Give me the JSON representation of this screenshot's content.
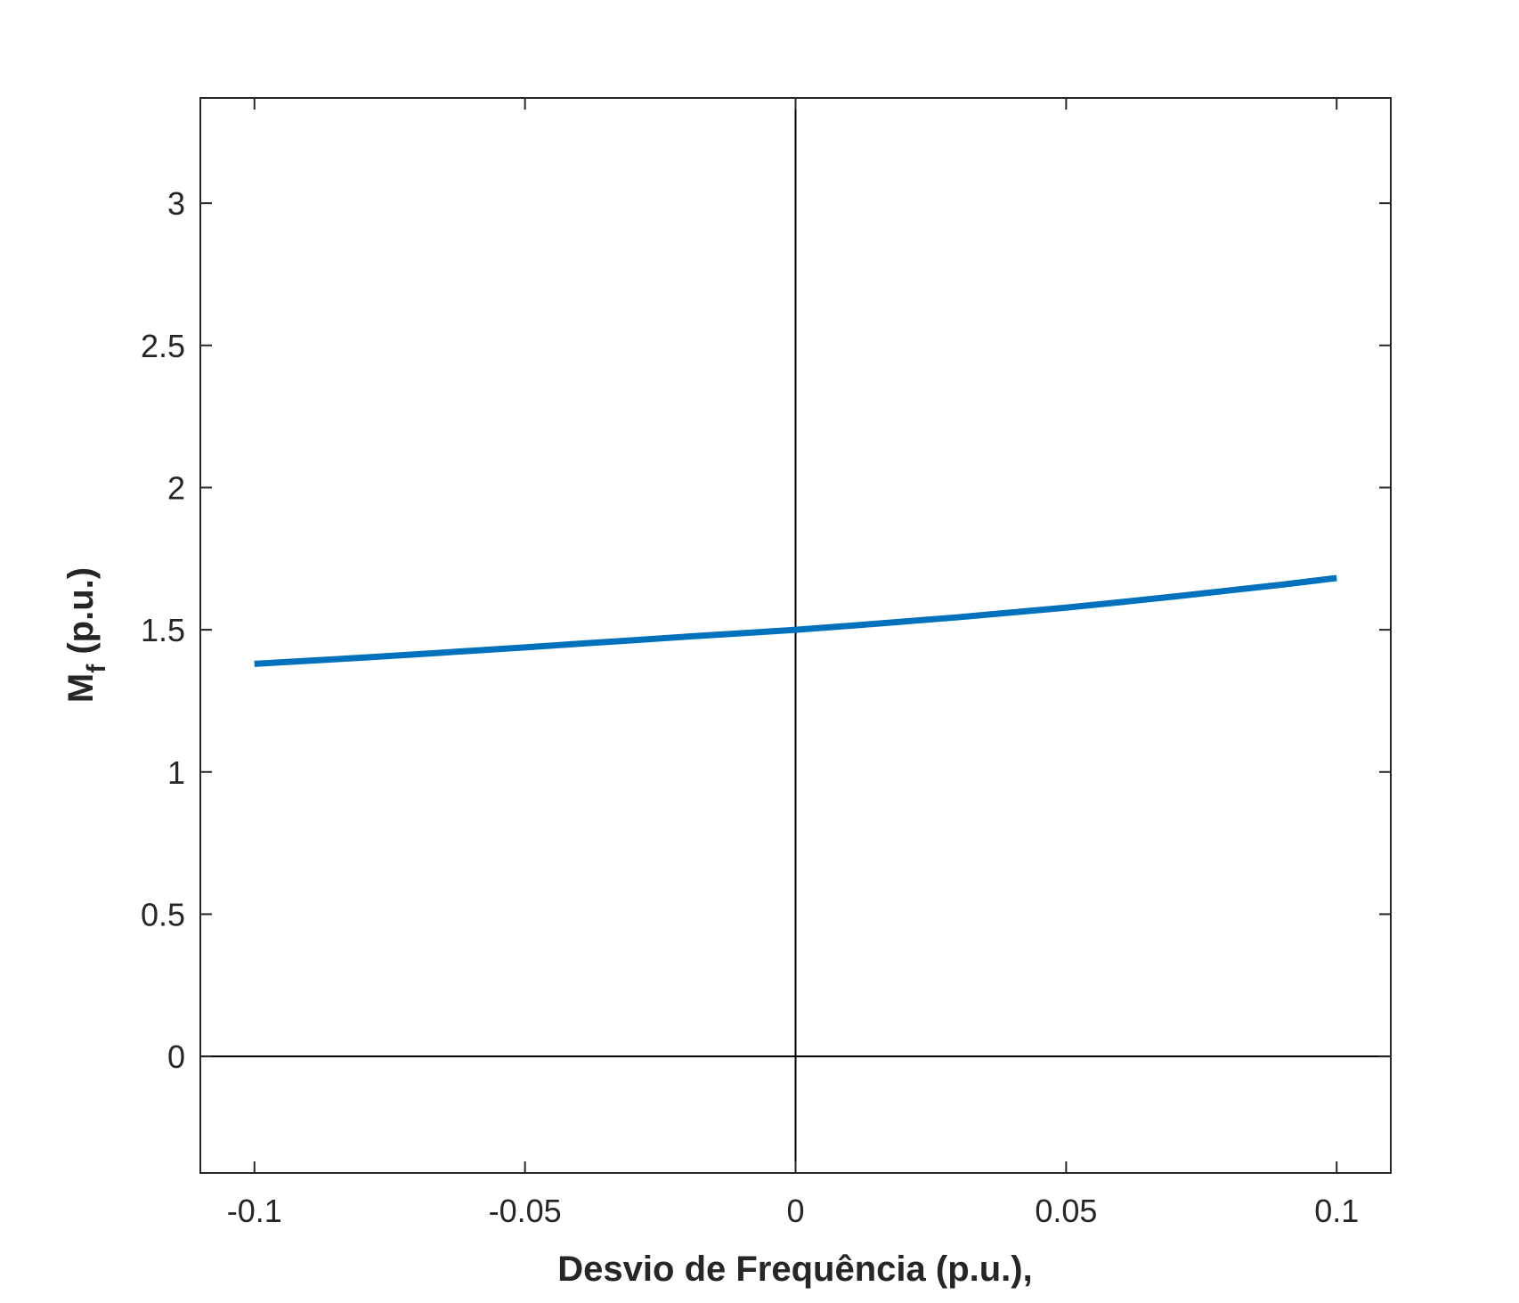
{
  "chart_data": {
    "type": "line",
    "title": "",
    "xlabel": "Desvio de Frequência (p.u.),",
    "ylabel": "M",
    "ylabel_subscript": "f",
    "ylabel_suffix": " (p.u.)",
    "xlim": [
      -0.11,
      0.11
    ],
    "ylim": [
      -0.41,
      3.37
    ],
    "xticks": [
      -0.1,
      -0.05,
      0,
      0.05,
      0.1
    ],
    "xtick_labels": [
      "-0.1",
      "-0.05",
      "0",
      "0.05",
      "0.1"
    ],
    "yticks": [
      0,
      0.5,
      1,
      1.5,
      2,
      2.5,
      3
    ],
    "ytick_labels": [
      "0",
      "0.5",
      "1",
      "1.5",
      "2",
      "2.5",
      "3"
    ],
    "grid": false,
    "reference_lines": {
      "x": 0,
      "y": 0
    },
    "series": [
      {
        "color": "#0072BD",
        "x": [
          -0.1,
          -0.09,
          -0.08,
          -0.07,
          -0.06,
          -0.05,
          -0.04,
          -0.03,
          -0.02,
          -0.01,
          0,
          0.01,
          0.02,
          0.03,
          0.04,
          0.05,
          0.06,
          0.07,
          0.08,
          0.09,
          0.1
        ],
        "y": [
          1.38,
          1.391,
          1.402,
          1.414,
          1.426,
          1.438,
          1.451,
          1.463,
          1.476,
          1.488,
          1.5,
          1.514,
          1.529,
          1.544,
          1.561,
          1.578,
          1.597,
          1.617,
          1.638,
          1.659,
          1.682
        ]
      }
    ]
  }
}
